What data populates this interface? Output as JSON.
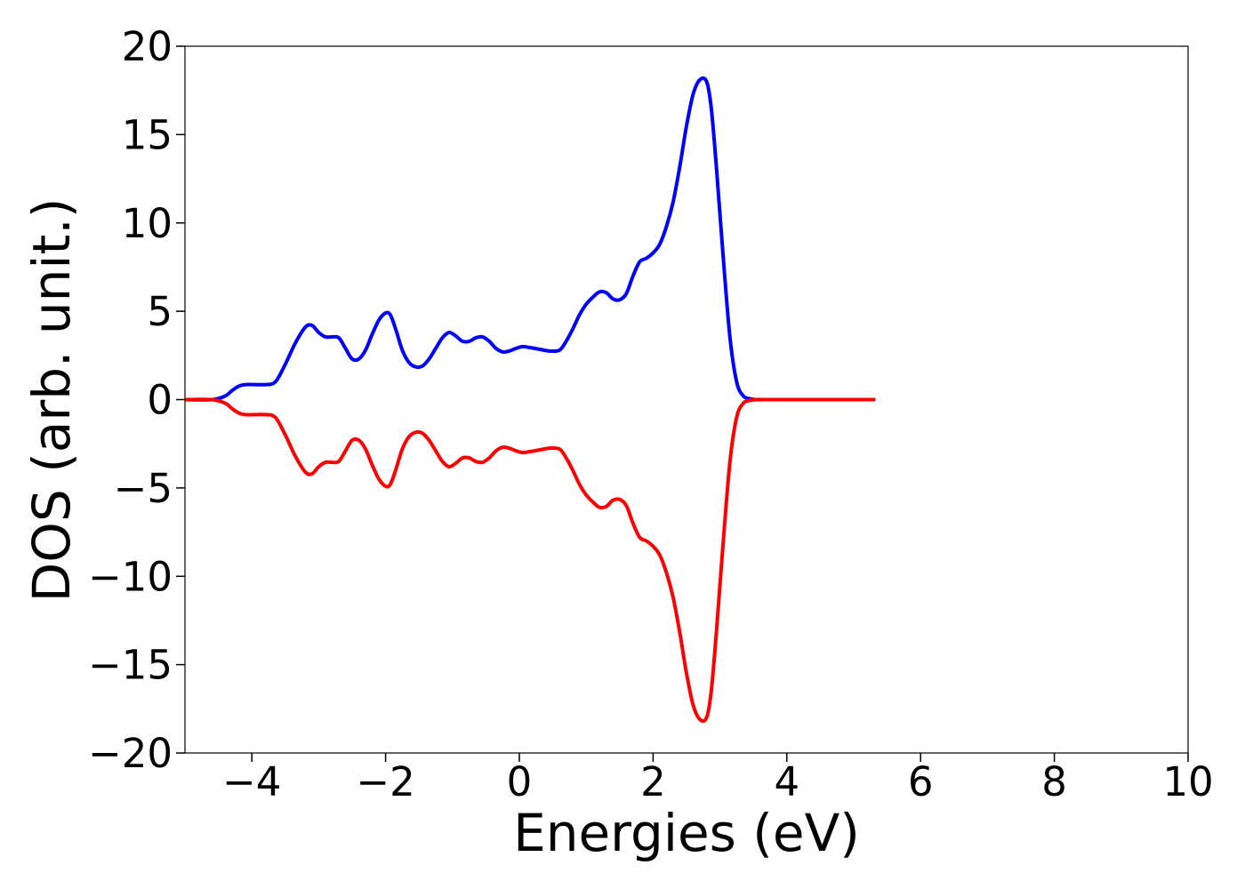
{
  "chart_data": {
    "type": "line",
    "title": "",
    "xlabel": "Energies (eV)",
    "ylabel": "DOS (arb. unit.)",
    "xlim": [
      -5,
      10
    ],
    "ylim": [
      -20,
      20
    ],
    "xticks": [
      -4,
      -2,
      0,
      2,
      4,
      6,
      8,
      10
    ],
    "yticks": [
      -20,
      -15,
      -10,
      -5,
      0,
      5,
      10,
      15,
      20
    ],
    "xtick_labels": [
      "−4",
      "−2",
      "0",
      "2",
      "4",
      "6",
      "8",
      "10"
    ],
    "ytick_labels": [
      "−20",
      "−15",
      "−10",
      "−5",
      "0",
      "5",
      "10",
      "15",
      "20"
    ],
    "grid": false,
    "legend": "none",
    "series": [
      {
        "color": "#0000ff",
        "x": [
          -5.0,
          -4.6,
          -4.4,
          -4.3,
          -4.2,
          -4.1,
          -3.95,
          -3.8,
          -3.65,
          -3.5,
          -3.35,
          -3.2,
          -3.1,
          -3.0,
          -2.9,
          -2.8,
          -2.7,
          -2.6,
          -2.5,
          -2.4,
          -2.3,
          -2.2,
          -2.1,
          -2.0,
          -1.93,
          -1.85,
          -1.75,
          -1.65,
          -1.55,
          -1.45,
          -1.35,
          -1.25,
          -1.15,
          -1.05,
          -0.95,
          -0.85,
          -0.75,
          -0.65,
          -0.55,
          -0.45,
          -0.35,
          -0.25,
          -0.15,
          -0.05,
          0.05,
          0.15,
          0.3,
          0.45,
          0.6,
          0.7,
          0.8,
          0.9,
          1.0,
          1.1,
          1.2,
          1.3,
          1.4,
          1.5,
          1.6,
          1.7,
          1.8,
          1.9,
          2.0,
          2.1,
          2.2,
          2.3,
          2.4,
          2.5,
          2.6,
          2.7,
          2.8,
          2.87,
          2.95,
          3.05,
          3.15,
          3.25,
          3.35,
          3.45,
          3.55,
          3.7,
          4.0,
          5.3
        ],
        "y": [
          0.0,
          0.0,
          0.2,
          0.5,
          0.75,
          0.85,
          0.85,
          0.85,
          1.0,
          2.0,
          3.2,
          4.1,
          4.2,
          3.8,
          3.55,
          3.55,
          3.5,
          2.9,
          2.3,
          2.3,
          2.8,
          3.7,
          4.5,
          4.9,
          4.8,
          4.0,
          2.8,
          2.1,
          1.85,
          1.9,
          2.3,
          2.9,
          3.5,
          3.8,
          3.6,
          3.3,
          3.3,
          3.5,
          3.55,
          3.3,
          2.9,
          2.7,
          2.75,
          2.9,
          3.0,
          2.95,
          2.85,
          2.75,
          2.8,
          3.3,
          4.0,
          4.8,
          5.4,
          5.8,
          6.1,
          6.05,
          5.7,
          5.65,
          6.0,
          7.0,
          7.8,
          8.0,
          8.3,
          8.8,
          9.8,
          11.2,
          13.2,
          15.5,
          17.3,
          18.1,
          18.0,
          16.5,
          13.0,
          8.0,
          3.5,
          1.0,
          0.2,
          0.05,
          0.0,
          0.0,
          0.0,
          0.0
        ]
      },
      {
        "color": "#ff0000",
        "x": [
          -5.0,
          -4.6,
          -4.4,
          -4.3,
          -4.2,
          -4.1,
          -3.95,
          -3.8,
          -3.65,
          -3.5,
          -3.35,
          -3.2,
          -3.1,
          -3.0,
          -2.9,
          -2.8,
          -2.7,
          -2.6,
          -2.5,
          -2.4,
          -2.3,
          -2.2,
          -2.1,
          -2.0,
          -1.93,
          -1.85,
          -1.75,
          -1.65,
          -1.55,
          -1.45,
          -1.35,
          -1.25,
          -1.15,
          -1.05,
          -0.95,
          -0.85,
          -0.75,
          -0.65,
          -0.55,
          -0.45,
          -0.35,
          -0.25,
          -0.15,
          -0.05,
          0.05,
          0.15,
          0.3,
          0.45,
          0.6,
          0.7,
          0.8,
          0.9,
          1.0,
          1.1,
          1.2,
          1.3,
          1.4,
          1.5,
          1.6,
          1.7,
          1.8,
          1.9,
          2.0,
          2.1,
          2.2,
          2.3,
          2.4,
          2.5,
          2.6,
          2.7,
          2.8,
          2.87,
          2.95,
          3.05,
          3.15,
          3.25,
          3.35,
          3.45,
          3.55,
          3.7,
          4.0,
          5.3
        ],
        "y": [
          0.0,
          0.0,
          -0.2,
          -0.5,
          -0.75,
          -0.85,
          -0.85,
          -0.85,
          -1.0,
          -2.0,
          -3.2,
          -4.1,
          -4.2,
          -3.8,
          -3.55,
          -3.55,
          -3.5,
          -2.9,
          -2.3,
          -2.3,
          -2.8,
          -3.7,
          -4.5,
          -4.9,
          -4.8,
          -4.0,
          -2.8,
          -2.1,
          -1.85,
          -1.9,
          -2.3,
          -2.9,
          -3.5,
          -3.8,
          -3.6,
          -3.3,
          -3.3,
          -3.5,
          -3.55,
          -3.3,
          -2.9,
          -2.7,
          -2.75,
          -2.9,
          -3.0,
          -2.95,
          -2.85,
          -2.75,
          -2.8,
          -3.3,
          -4.0,
          -4.8,
          -5.4,
          -5.8,
          -6.1,
          -6.05,
          -5.7,
          -5.65,
          -6.0,
          -7.0,
          -7.8,
          -8.0,
          -8.3,
          -8.8,
          -9.8,
          -11.2,
          -13.2,
          -15.5,
          -17.3,
          -18.1,
          -18.0,
          -16.5,
          -13.0,
          -8.0,
          -3.5,
          -1.0,
          -0.2,
          -0.05,
          0.0,
          0.0,
          0.0,
          0.0
        ]
      }
    ]
  }
}
